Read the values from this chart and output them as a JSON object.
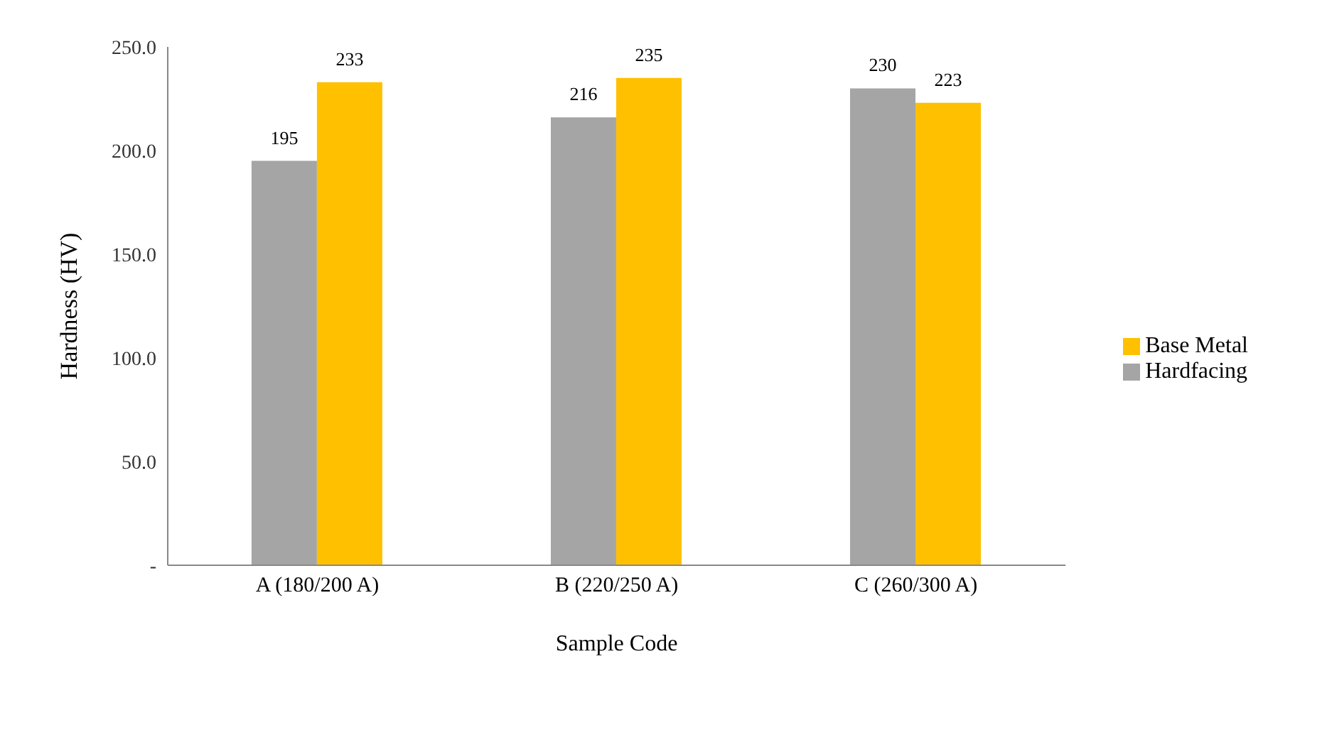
{
  "chart_data": {
    "type": "bar",
    "xlabel": "Sample Code",
    "ylabel": "Hardness (HV)",
    "categories": [
      "A (180/200 A)",
      "B (220/250 A)",
      "C (260/300 A)"
    ],
    "series": [
      {
        "name": "Hardfacing",
        "color": "#a5a5a5",
        "values": [
          195,
          216,
          230
        ]
      },
      {
        "name": "Base Metal",
        "color": "#ffc000",
        "values": [
          233,
          235,
          223
        ]
      }
    ],
    "ylim": [
      0,
      250
    ],
    "yticks": [
      {
        "value": 0,
        "label": "-"
      },
      {
        "value": 50,
        "label": "50.0"
      },
      {
        "value": 100,
        "label": "100.0"
      },
      {
        "value": 150,
        "label": "150.0"
      },
      {
        "value": 200,
        "label": "200.0"
      },
      {
        "value": 250,
        "label": "250.0"
      }
    ],
    "data_labels": true,
    "legend": "right",
    "grid": false
  }
}
